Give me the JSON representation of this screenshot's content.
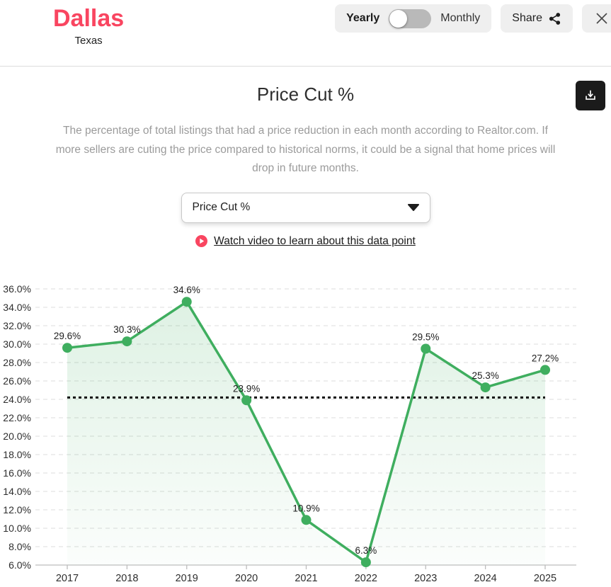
{
  "header": {
    "city": "Dallas",
    "state": "Texas",
    "period_toggle": {
      "left": "Yearly",
      "right": "Monthly",
      "selected": "Yearly"
    },
    "share": "Share"
  },
  "panel": {
    "title": "Price Cut %",
    "description": "The percentage of total listings that had a price reduction in each month according to Realtor.com. If more sellers are cuting the price compared to historical norms, it could be a signal that home prices will drop in future months.",
    "metric_dropdown": {
      "value": "Price Cut %"
    },
    "video_link_text": "Watch video to learn about this data point"
  },
  "chart_data": {
    "type": "line",
    "title": "Price Cut %",
    "categories": [
      "2017",
      "2018",
      "2019",
      "2020",
      "2021",
      "2022",
      "2023",
      "2024",
      "2025"
    ],
    "values": [
      29.6,
      30.3,
      34.6,
      23.9,
      10.9,
      6.3,
      29.5,
      25.3,
      27.2
    ],
    "point_labels": [
      "29.6%",
      "30.3%",
      "34.6%",
      "23.9%",
      "10.9%",
      "6.3%",
      "29.5%",
      "25.3%",
      "27.2%"
    ],
    "ylim": [
      6,
      36
    ],
    "ytick_step": 2,
    "ytick_suffix": "%",
    "grid": "horizontal-dashed",
    "legend": "none",
    "series_color": "#3fae5f",
    "area_fill": "green-fade",
    "reference_line": {
      "value": 24.2,
      "color": "#111111",
      "style": "dashed"
    }
  },
  "colors": {
    "brand_pink": "#f94560",
    "chart_green": "#3fae5f",
    "pill_bg": "#efefef",
    "description_gray": "#9b9b9b",
    "download_button_bg": "#1b1b1b"
  }
}
